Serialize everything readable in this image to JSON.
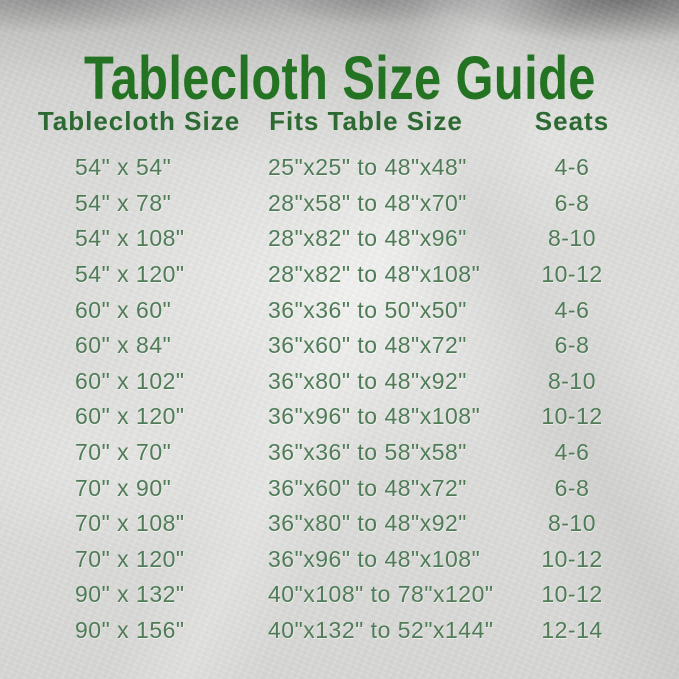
{
  "title": "Tablecloth Size Guide",
  "colors": {
    "title_green": "#237323",
    "header_green": "#2d6932",
    "row_green": "#4f7c57",
    "background_silver": "#dcdcda"
  },
  "chart_data": {
    "type": "table",
    "title": "Tablecloth Size Guide",
    "columns": [
      "Tablecloth Size",
      "Fits Table Size",
      "Seats"
    ],
    "rows": [
      [
        "54\" x 54\"",
        "25\"x25\" to 48\"x48\"",
        "4-6"
      ],
      [
        "54\" x 78\"",
        "28\"x58\" to 48\"x70\"",
        "6-8"
      ],
      [
        "54\" x 108\"",
        "28\"x82\" to 48\"x96\"",
        "8-10"
      ],
      [
        "54\" x 120\"",
        "28\"x82\" to 48\"x108\"",
        "10-12"
      ],
      [
        "60\" x 60\"",
        "36\"x36\" to 50\"x50\"",
        "4-6"
      ],
      [
        "60\" x 84\"",
        "36\"x60\" to 48\"x72\"",
        "6-8"
      ],
      [
        "60\" x 102\"",
        "36\"x80\" to 48\"x92\"",
        "8-10"
      ],
      [
        "60\" x 120\"",
        "36\"x96\" to 48\"x108\"",
        "10-12"
      ],
      [
        "70\" x 70\"",
        "36\"x36\" to 58\"x58\"",
        "4-6"
      ],
      [
        "70\" x 90\"",
        "36\"x60\" to 48\"x72\"",
        "6-8"
      ],
      [
        "70\" x 108\"",
        "36\"x80\" to 48\"x92\"",
        "8-10"
      ],
      [
        "70\" x 120\"",
        "36\"x96\" to 48\"x108\"",
        "10-12"
      ],
      [
        "90\" x 132\"",
        "40\"x108\" to 78\"x120\"",
        "10-12"
      ],
      [
        "90\" x 156\"",
        "40\"x132\" to 52\"x144\"",
        "12-14"
      ]
    ]
  }
}
